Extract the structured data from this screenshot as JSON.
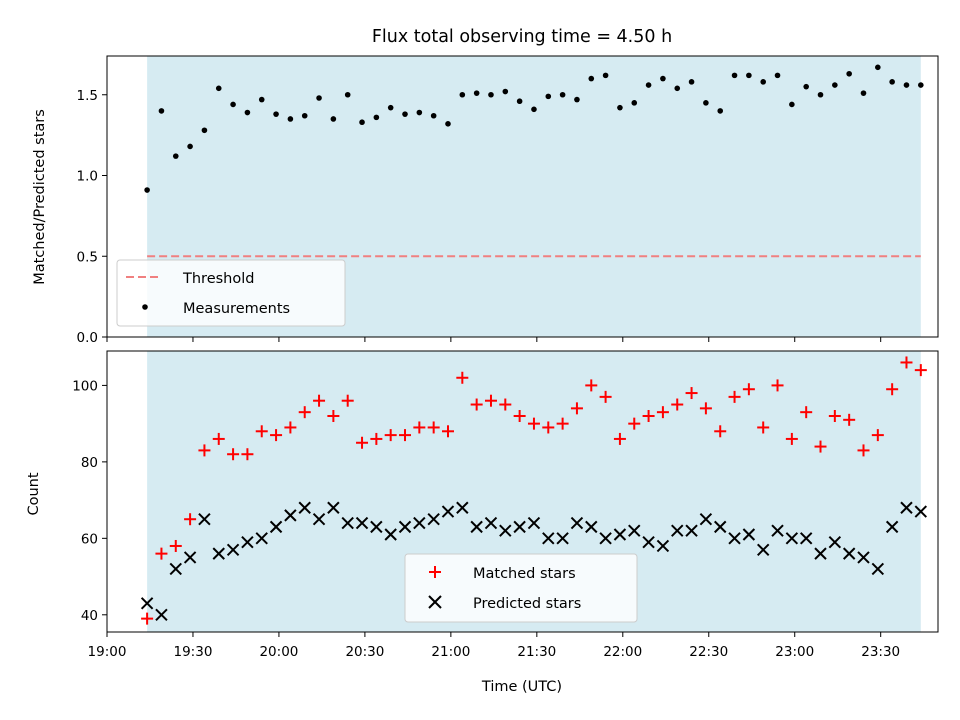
{
  "chart_data": [
    {
      "type": "scatter",
      "title": "Flux total observing time = 4.50 h",
      "ylabel": "Matched/Predicted stars",
      "xlim": [
        "19:00",
        "23:50"
      ],
      "ylim": [
        0,
        1.74
      ],
      "yticks": [
        "0.0",
        "0.5",
        "1.0",
        "1.5"
      ],
      "shaded_span": [
        "19:14",
        "23:44"
      ],
      "threshold": 0.5,
      "legend": {
        "placement": "lower-left",
        "entries": [
          "Threshold",
          "Measurements"
        ]
      },
      "series": [
        {
          "name": "Measurements",
          "color": "#000000",
          "marker": "dot",
          "x": [
            "19:14",
            "19:19",
            "19:24",
            "19:29",
            "19:34",
            "19:39",
            "19:44",
            "19:49",
            "19:54",
            "19:59",
            "20:04",
            "20:09",
            "20:14",
            "20:19",
            "20:24",
            "20:29",
            "20:34",
            "20:39",
            "20:44",
            "20:49",
            "20:54",
            "20:59",
            "21:04",
            "21:09",
            "21:14",
            "21:19",
            "21:24",
            "21:29",
            "21:34",
            "21:39",
            "21:44",
            "21:49",
            "21:54",
            "21:59",
            "22:04",
            "22:09",
            "22:14",
            "22:19",
            "22:24",
            "22:29",
            "22:34",
            "22:39",
            "22:44",
            "22:49",
            "22:54",
            "22:59",
            "23:04",
            "23:09",
            "23:14",
            "23:19",
            "23:24",
            "23:29",
            "23:34",
            "23:39",
            "23:44"
          ],
          "y": [
            0.91,
            1.4,
            1.12,
            1.18,
            1.28,
            1.54,
            1.44,
            1.39,
            1.47,
            1.38,
            1.35,
            1.37,
            1.48,
            1.35,
            1.5,
            1.33,
            1.36,
            1.42,
            1.38,
            1.39,
            1.37,
            1.32,
            1.5,
            1.51,
            1.5,
            1.52,
            1.46,
            1.41,
            1.49,
            1.5,
            1.47,
            1.6,
            1.62,
            1.42,
            1.45,
            1.56,
            1.6,
            1.54,
            1.58,
            1.45,
            1.4,
            1.62,
            1.62,
            1.58,
            1.62,
            1.44,
            1.55,
            1.5,
            1.56,
            1.63,
            1.51,
            1.67,
            1.58,
            1.56,
            1.56
          ]
        },
        {
          "name": "Threshold",
          "color": "#f08080",
          "style": "dashed",
          "x": [
            "19:14",
            "23:44"
          ],
          "y": [
            0.5,
            0.5
          ]
        }
      ]
    },
    {
      "type": "scatter",
      "xlabel": "Time (UTC)",
      "ylabel": "Count",
      "xlim": [
        "19:00",
        "23:50"
      ],
      "ylim": [
        35.5,
        109
      ],
      "yticks": [
        "40",
        "60",
        "80",
        "100"
      ],
      "xticks": [
        "19:00",
        "19:30",
        "20:00",
        "20:30",
        "21:00",
        "21:30",
        "22:00",
        "22:30",
        "23:00",
        "23:30"
      ],
      "shaded_span": [
        "19:14",
        "23:44"
      ],
      "legend": {
        "placement": "lower-center",
        "entries": [
          "Matched stars",
          "Predicted stars"
        ]
      },
      "series": [
        {
          "name": "Matched stars",
          "color": "#ff0000",
          "marker": "plus",
          "x": [
            "19:14",
            "19:19",
            "19:24",
            "19:29",
            "19:34",
            "19:39",
            "19:44",
            "19:49",
            "19:54",
            "19:59",
            "20:04",
            "20:09",
            "20:14",
            "20:19",
            "20:24",
            "20:29",
            "20:34",
            "20:39",
            "20:44",
            "20:49",
            "20:54",
            "20:59",
            "21:04",
            "21:09",
            "21:14",
            "21:19",
            "21:24",
            "21:29",
            "21:34",
            "21:39",
            "21:44",
            "21:49",
            "21:54",
            "21:59",
            "22:04",
            "22:09",
            "22:14",
            "22:19",
            "22:24",
            "22:29",
            "22:34",
            "22:39",
            "22:44",
            "22:49",
            "22:54",
            "22:59",
            "23:04",
            "23:09",
            "23:14",
            "23:19",
            "23:24",
            "23:29",
            "23:34",
            "23:39",
            "23:44"
          ],
          "y": [
            39,
            56,
            58,
            65,
            83,
            86,
            82,
            82,
            88,
            87,
            89,
            93,
            96,
            92,
            96,
            85,
            86,
            87,
            87,
            89,
            89,
            88,
            102,
            95,
            96,
            95,
            92,
            90,
            89,
            90,
            94,
            100,
            97,
            86,
            90,
            92,
            93,
            95,
            98,
            94,
            88,
            97,
            99,
            89,
            100,
            86,
            93,
            84,
            92,
            91,
            83,
            87,
            99,
            106,
            104
          ]
        },
        {
          "name": "Predicted stars",
          "color": "#000000",
          "marker": "x",
          "x": [
            "19:14",
            "19:19",
            "19:24",
            "19:29",
            "19:34",
            "19:39",
            "19:44",
            "19:49",
            "19:54",
            "19:59",
            "20:04",
            "20:09",
            "20:14",
            "20:19",
            "20:24",
            "20:29",
            "20:34",
            "20:39",
            "20:44",
            "20:49",
            "20:54",
            "20:59",
            "21:04",
            "21:09",
            "21:14",
            "21:19",
            "21:24",
            "21:29",
            "21:34",
            "21:39",
            "21:44",
            "21:49",
            "21:54",
            "21:59",
            "22:04",
            "22:09",
            "22:14",
            "22:19",
            "22:24",
            "22:29",
            "22:34",
            "22:39",
            "22:44",
            "22:49",
            "22:54",
            "22:59",
            "23:04",
            "23:09",
            "23:14",
            "23:19",
            "23:24",
            "23:29",
            "23:34",
            "23:39",
            "23:44"
          ],
          "y": [
            43,
            40,
            52,
            55,
            65,
            56,
            57,
            59,
            60,
            63,
            66,
            68,
            65,
            68,
            64,
            64,
            63,
            61,
            63,
            64,
            65,
            67,
            68,
            63,
            64,
            62,
            63,
            64,
            60,
            60,
            64,
            63,
            60,
            61,
            62,
            59,
            58,
            62,
            62,
            65,
            63,
            60,
            61,
            57,
            62,
            60,
            60,
            56,
            59,
            56,
            55,
            52,
            63,
            68,
            67
          ]
        }
      ]
    }
  ]
}
